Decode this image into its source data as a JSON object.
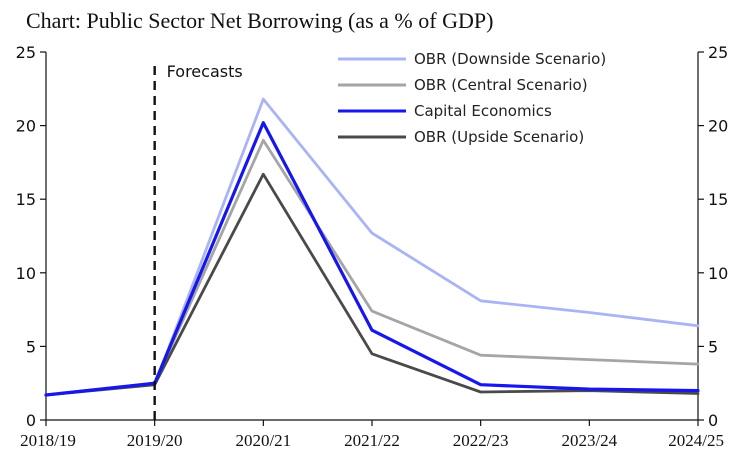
{
  "page_title": "Chart: Public Sector Net Borrowing (as a % of GDP)",
  "chart_data": {
    "type": "line",
    "title": "Chart: Public Sector Net Borrowing (as a % of GDP)",
    "xlabel": "",
    "ylabel": "",
    "categories": [
      "2018/19",
      "2019/20",
      "2020/21",
      "2021/22",
      "2022/23",
      "2023/24",
      "2024/25"
    ],
    "ylim": [
      0,
      25
    ],
    "yticks": [
      0,
      5,
      10,
      15,
      20,
      25
    ],
    "grid": false,
    "legend_position": "top-right",
    "annotation": {
      "label": "Forecasts",
      "at_category": "2019/20"
    },
    "series": [
      {
        "name": "OBR (Downside Scenario)",
        "color": "#aab4f5",
        "values": [
          1.7,
          2.4,
          21.8,
          12.7,
          8.1,
          7.3,
          6.4
        ]
      },
      {
        "name": "OBR (Central Scenario)",
        "color": "#a5a5a5",
        "values": [
          1.7,
          2.5,
          19.0,
          7.4,
          4.4,
          4.1,
          3.8
        ]
      },
      {
        "name": "Capital Economics",
        "color": "#1616ee",
        "values": [
          1.7,
          2.5,
          20.2,
          6.1,
          2.4,
          2.1,
          2.0
        ]
      },
      {
        "name": "OBR (Upside Scenario)",
        "color": "#4a4a4a",
        "values": [
          1.7,
          2.4,
          16.7,
          4.5,
          1.9,
          2.0,
          1.8
        ]
      }
    ]
  }
}
